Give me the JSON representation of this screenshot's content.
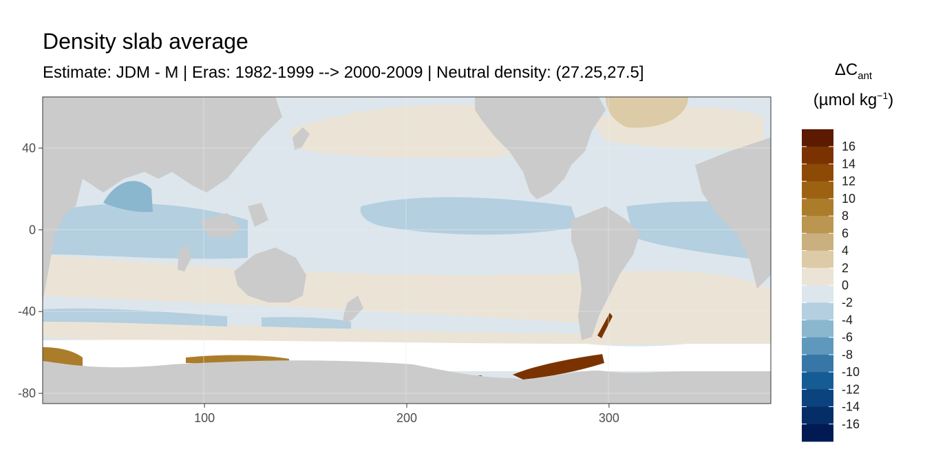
{
  "chart_data": {
    "type": "heatmap",
    "title": "Density slab average",
    "subtitle": "Estimate: JDM - M | Eras: 1982-1999 --> 2000-2009 | Neutral density: (27.25,27.5]",
    "legend": {
      "title_main": "ΔC",
      "title_sub": "ant",
      "title_unit_prefix": "(µmol kg",
      "title_unit_sup": "−1",
      "title_unit_suffix": ")",
      "placement": "right",
      "breaks": [
        16,
        14,
        12,
        10,
        8,
        6,
        4,
        2,
        0,
        -2,
        -4,
        -6,
        -8,
        -10,
        -12,
        -14,
        -16
      ],
      "colors": [
        "#5c1a00",
        "#7a3300",
        "#8c4a06",
        "#9c6212",
        "#ab7c2a",
        "#ba9650",
        "#c9b07e",
        "#dccba6",
        "#ebe4d6",
        "#dce6ec",
        "#b4cfdf",
        "#8ab6ce",
        "#5f98bd",
        "#3677a8",
        "#165c94",
        "#0a437d",
        "#052e67",
        "#021a54"
      ]
    },
    "x_axis": {
      "ticks": [
        100,
        200,
        300
      ],
      "range": [
        20,
        380
      ]
    },
    "y_axis": {
      "ticks": [
        40,
        0,
        -40,
        -80
      ],
      "range": [
        -85,
        65
      ]
    },
    "grid": true,
    "colors": {
      "land": "#cbcbcb",
      "ocean_nodata": "#ffffff",
      "panel_border": "#333333"
    }
  }
}
